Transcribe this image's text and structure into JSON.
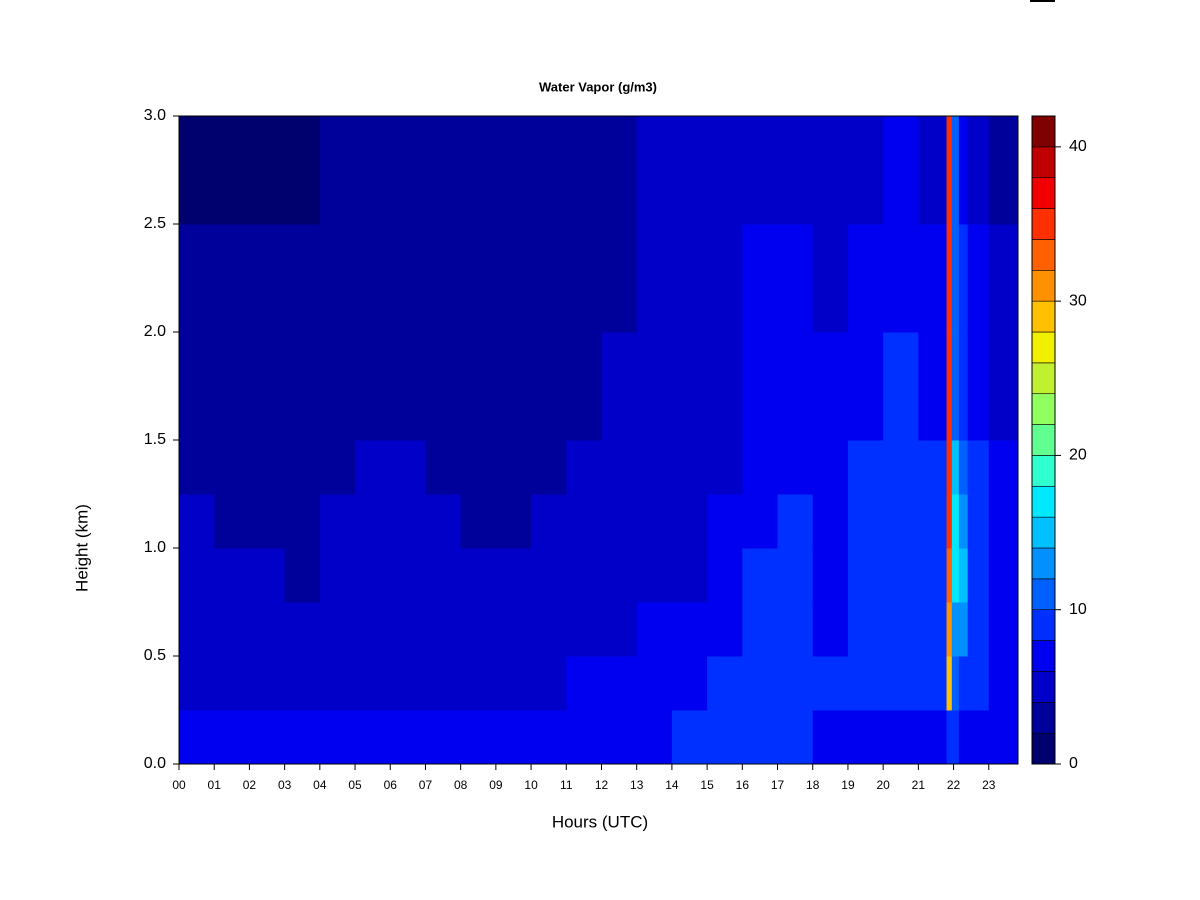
{
  "chart_data": {
    "type": "heatmap",
    "title": "Water Vapor (g/m3)",
    "xlabel": "Hours (UTC)",
    "ylabel": "Height (km)",
    "xlim": [
      0,
      23.83
    ],
    "ylim": [
      0,
      3
    ],
    "xticks": [
      {
        "value": 0,
        "label": "00"
      },
      {
        "value": 1,
        "label": "01"
      },
      {
        "value": 2,
        "label": "02"
      },
      {
        "value": 3,
        "label": "03"
      },
      {
        "value": 4,
        "label": "04"
      },
      {
        "value": 5,
        "label": "05"
      },
      {
        "value": 6,
        "label": "06"
      },
      {
        "value": 7,
        "label": "07"
      },
      {
        "value": 8,
        "label": "08"
      },
      {
        "value": 9,
        "label": "09"
      },
      {
        "value": 10,
        "label": "10"
      },
      {
        "value": 11,
        "label": "11"
      },
      {
        "value": 12,
        "label": "12"
      },
      {
        "value": 13,
        "label": "13"
      },
      {
        "value": 14,
        "label": "14"
      },
      {
        "value": 15,
        "label": "15"
      },
      {
        "value": 16,
        "label": "16"
      },
      {
        "value": 17,
        "label": "17"
      },
      {
        "value": 18,
        "label": "18"
      },
      {
        "value": 19,
        "label": "19"
      },
      {
        "value": 20,
        "label": "20"
      },
      {
        "value": 21,
        "label": "21"
      },
      {
        "value": 22,
        "label": "22"
      },
      {
        "value": 23,
        "label": "23"
      }
    ],
    "yticks": [
      {
        "value": 0,
        "label": "0.0"
      },
      {
        "value": 0.5,
        "label": "0.5"
      },
      {
        "value": 1,
        "label": "1.0"
      },
      {
        "value": 1.5,
        "label": "1.5"
      },
      {
        "value": 2,
        "label": "2.0"
      },
      {
        "value": 2.5,
        "label": "2.5"
      },
      {
        "value": 3,
        "label": "3.0"
      }
    ],
    "x_edges": [
      0,
      1,
      2,
      3,
      4,
      5,
      6,
      7,
      8,
      9,
      10,
      11,
      12,
      13,
      14,
      15,
      16,
      17,
      18,
      19,
      20,
      21,
      21.8,
      21.95,
      22.15,
      22.4,
      23,
      23.83
    ],
    "y_edges": [
      0,
      0.25,
      0.5,
      0.75,
      1,
      1.25,
      1.5,
      2,
      2.5,
      3
    ],
    "z": [
      [
        7,
        5,
        5,
        5,
        5,
        3,
        3,
        3,
        1
      ],
      [
        7,
        5,
        5,
        5,
        3,
        3,
        3,
        3,
        1
      ],
      [
        7,
        5,
        5,
        5,
        3,
        3,
        3,
        3,
        1
      ],
      [
        7,
        5,
        5,
        3,
        3,
        3,
        3,
        3,
        1
      ],
      [
        7,
        5,
        5,
        5,
        5,
        3,
        3,
        3,
        3
      ],
      [
        7,
        5,
        5,
        5,
        5,
        5,
        3,
        3,
        3
      ],
      [
        7,
        5,
        5,
        5,
        5,
        5,
        3,
        3,
        3
      ],
      [
        7,
        5,
        5,
        5,
        5,
        3,
        3,
        3,
        3
      ],
      [
        7,
        5,
        5,
        5,
        3,
        3,
        3,
        3,
        3
      ],
      [
        7,
        5,
        5,
        5,
        3,
        3,
        3,
        3,
        3
      ],
      [
        7,
        5,
        5,
        5,
        5,
        3,
        3,
        3,
        3
      ],
      [
        7,
        7,
        5,
        5,
        5,
        5,
        3,
        3,
        3
      ],
      [
        7,
        7,
        5,
        5,
        5,
        5,
        5,
        3,
        3
      ],
      [
        7,
        7,
        7,
        5,
        5,
        5,
        5,
        5,
        5
      ],
      [
        9,
        7,
        7,
        5,
        5,
        5,
        5,
        5,
        5
      ],
      [
        9,
        9,
        7,
        7,
        7,
        5,
        5,
        5,
        5
      ],
      [
        9,
        9,
        9,
        9,
        7,
        7,
        7,
        7,
        5
      ],
      [
        9,
        9,
        9,
        9,
        9,
        7,
        7,
        7,
        5
      ],
      [
        7,
        9,
        7,
        7,
        7,
        7,
        7,
        5,
        5
      ],
      [
        7,
        9,
        9,
        9,
        9,
        9,
        7,
        7,
        5
      ],
      [
        7,
        9,
        9,
        9,
        9,
        9,
        9,
        7,
        7
      ],
      [
        7,
        9,
        9,
        9,
        9,
        9,
        7,
        7,
        5
      ],
      [
        9,
        29,
        31,
        33,
        35,
        35,
        35,
        35,
        35
      ],
      [
        9,
        11,
        13,
        17,
        17,
        15,
        11,
        11,
        11
      ],
      [
        7,
        9,
        13,
        15,
        13,
        11,
        9,
        9,
        7
      ],
      [
        7,
        9,
        9,
        9,
        9,
        9,
        7,
        7,
        5
      ],
      [
        7,
        7,
        7,
        7,
        7,
        7,
        5,
        5,
        3
      ]
    ],
    "levels": [
      0,
      2,
      4,
      6,
      8,
      10,
      12,
      14,
      16,
      18,
      20,
      22,
      24,
      26,
      28,
      30,
      32,
      34,
      36,
      38,
      40,
      42
    ],
    "colors": [
      "#00006e",
      "#00009a",
      "#0000c8",
      "#0000f0",
      "#0030ff",
      "#0060ff",
      "#0090ff",
      "#00c0ff",
      "#00e8ff",
      "#30ffd0",
      "#60ff90",
      "#90ff60",
      "#c0f030",
      "#f0f000",
      "#ffc000",
      "#ff9000",
      "#ff6000",
      "#ff3000",
      "#f00000",
      "#c00000",
      "#800000"
    ],
    "colorbar_lim": [
      0,
      42
    ],
    "colorbar_ticks": [
      0,
      10,
      20,
      30,
      40
    ]
  }
}
